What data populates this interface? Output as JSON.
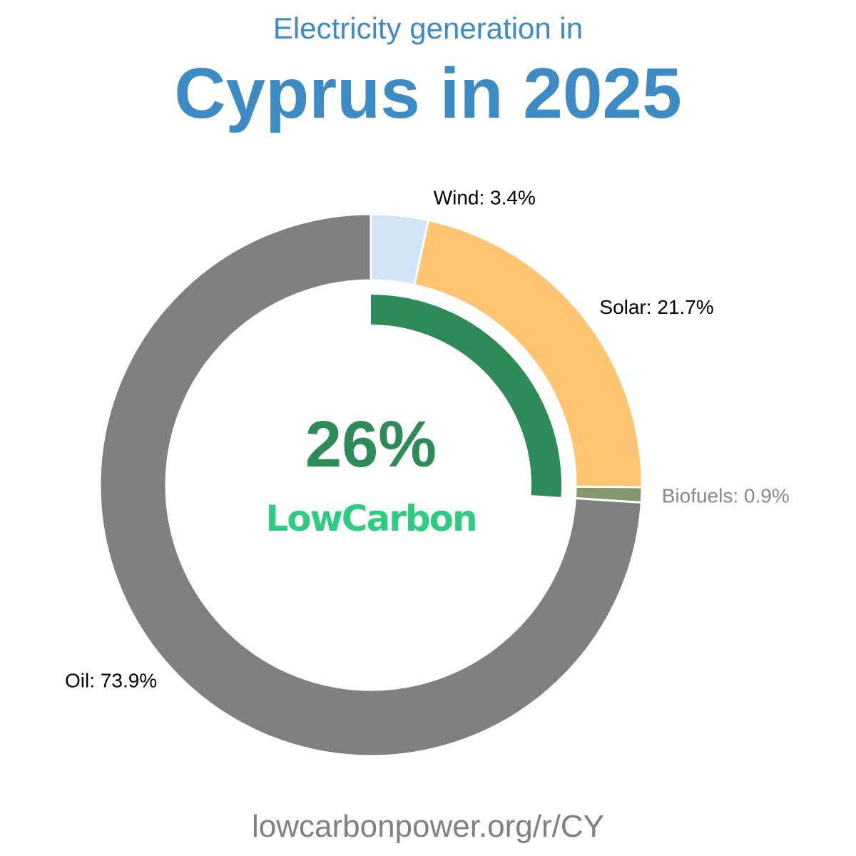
{
  "subtitle": "Electricity generation in",
  "title": "Cyprus in 2025",
  "footer": "lowcarbonpower.org/r/CY",
  "chart_data": {
    "type": "pie",
    "style": "donut",
    "slices": [
      {
        "name": "Wind",
        "value": 3.4,
        "label": "Wind: 3.4%",
        "color": "#d0e6f6",
        "label_color": "#000000"
      },
      {
        "name": "Solar",
        "value": 21.7,
        "label": "Solar: 21.7%",
        "color": "#ffc472",
        "label_color": "#000000"
      },
      {
        "name": "Biofuels",
        "value": 0.9,
        "label": "Biofuels: 0.9%",
        "color": "#87976d",
        "label_color": "#888888"
      },
      {
        "name": "Oil",
        "value": 73.9,
        "label": "Oil: 73.9%",
        "color": "#808080",
        "label_color": "#000000"
      }
    ],
    "low_carbon": {
      "value": 26,
      "label": "26%",
      "color": "#2e8b57",
      "logo_text": "LowCarbon",
      "logo_color": "#2ecc80"
    }
  }
}
